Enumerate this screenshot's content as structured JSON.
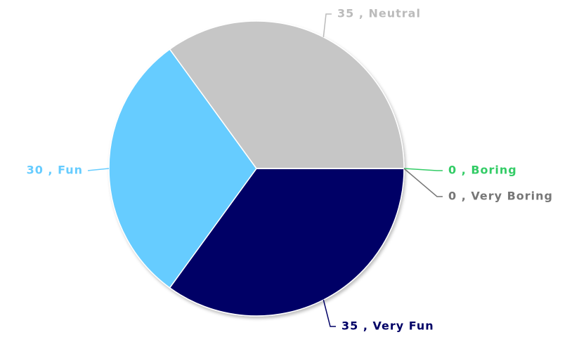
{
  "chart_data": {
    "type": "pie",
    "values": [
      35,
      30,
      35,
      0,
      0
    ],
    "value_labels": [
      "35 , Very Fun",
      "30 , Fun",
      "35 , Neutral",
      "0 , Boring",
      "0 , Very Boring"
    ],
    "colors": [
      "#000066",
      "#66ccff",
      "#c6c6c6",
      "#33cc66",
      "#888888"
    ],
    "label_colors": [
      "#000066",
      "#66ccff",
      "#bbbbbb",
      "#33cc66",
      "#777777"
    ]
  }
}
